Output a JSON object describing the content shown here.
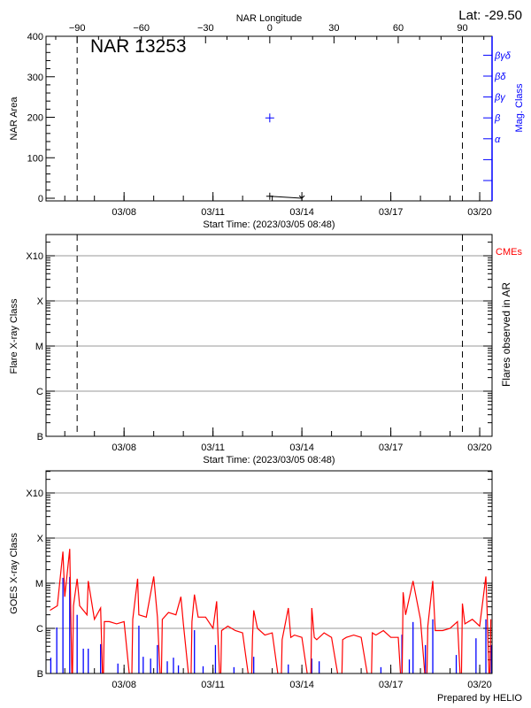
{
  "header": {
    "lat": "Lat: -29.50",
    "credit": "Prepared by HELIO"
  },
  "chart_data": [
    {
      "type": "scatter",
      "title": "NAR 13253",
      "xlabel": "Start Time: (2023/03/05 08:48)",
      "x_range": [
        "2023-03-05T08:48",
        "2023-03-20T10:00"
      ],
      "x_ticks": [
        [
          "2023-03-08T00:00",
          "03/08"
        ],
        [
          "2023-03-11T00:00",
          "03/11"
        ],
        [
          "2023-03-14T00:00",
          "03/14"
        ],
        [
          "2023-03-17T00:00",
          "03/17"
        ],
        [
          "2023-03-20T00:00",
          "03/20"
        ]
      ],
      "ylabel": "NAR Area",
      "ylim": [
        0,
        400
      ],
      "y_ticks": [
        "0",
        "100",
        "200",
        "300",
        "400"
      ],
      "top_axis": {
        "label": "NAR Longitude",
        "ticks": [
          "-90",
          "-60",
          "-30",
          "0",
          "30",
          "60",
          "90"
        ]
      },
      "right_axis": {
        "label": "Mag. Class",
        "color": "#0000ff",
        "classes": [
          "",
          "",
          "α",
          "β",
          "βγ",
          "βδ",
          "βγδ"
        ]
      },
      "limb_markers": [
        "2023-03-06T10:00",
        "2023-03-19T10:00"
      ],
      "area_series": [
        [
          "2023-03-12T22:00",
          5
        ],
        [
          "2023-03-14T00:00",
          0
        ]
      ],
      "mag_class_series": [
        [
          "2023-03-12T22:00",
          "β"
        ]
      ],
      "grid": false
    },
    {
      "type": "scatter",
      "xlabel": "Start Time: (2023/03/05 08:48)",
      "x_range": [
        "2023-03-05T08:48",
        "2023-03-20T10:00"
      ],
      "x_ticks": [
        [
          "2023-03-08T00:00",
          "03/08"
        ],
        [
          "2023-03-11T00:00",
          "03/11"
        ],
        [
          "2023-03-14T00:00",
          "03/14"
        ],
        [
          "2023-03-17T00:00",
          "03/17"
        ],
        [
          "2023-03-20T00:00",
          "03/20"
        ]
      ],
      "ylabel": "Flare X-ray Class",
      "y_ticks": [
        "B",
        "C",
        "M",
        "X",
        "X10"
      ],
      "right_label": "Flares observed in AR",
      "legend": {
        "label": "CMEs",
        "color": "#ff0000"
      },
      "limb_markers": [
        "2023-03-06T10:00",
        "2023-03-19T10:00"
      ],
      "flares": [],
      "grid": true
    },
    {
      "type": "line",
      "x_range": [
        "2023-03-05T08:48",
        "2023-03-20T10:00"
      ],
      "x_ticks": [
        [
          "2023-03-08T00:00",
          "03/08"
        ],
        [
          "2023-03-11T00:00",
          "03/11"
        ],
        [
          "2023-03-14T00:00",
          "03/14"
        ],
        [
          "2023-03-17T00:00",
          "03/17"
        ],
        [
          "2023-03-20T00:00",
          "03/20"
        ]
      ],
      "ylabel": "GOES X-ray Class",
      "y_ticks": [
        "B",
        "C",
        "M",
        "X",
        "X10"
      ],
      "y_unit": "log10 flux (W/m^2)",
      "grid": true,
      "series": [
        {
          "color": "#ff0000",
          "values": [
            [
              "2023-03-05T12:00",
              -5.6
            ],
            [
              "2023-03-05T18:00",
              -5.5
            ],
            [
              "2023-03-05T22:30",
              -4.3
            ],
            [
              "2023-03-06T00:00",
              -5.3
            ],
            [
              "2023-03-06T04:00",
              -4.24
            ],
            [
              "2023-03-06T06:00",
              -7.5
            ],
            [
              "2023-03-06T07:00",
              -5.5
            ],
            [
              "2023-03-06T10:00",
              -4.9
            ],
            [
              "2023-03-06T12:00",
              -5.5
            ],
            [
              "2023-03-06T18:00",
              -5.7
            ],
            [
              "2023-03-06T19:00",
              -4.95
            ],
            [
              "2023-03-07T00:00",
              -5.8
            ],
            [
              "2023-03-07T05:00",
              -5.55
            ],
            [
              "2023-03-07T07:00",
              -7.5
            ],
            [
              "2023-03-07T08:00",
              -5.85
            ],
            [
              "2023-03-07T12:00",
              -5.85
            ],
            [
              "2023-03-07T18:00",
              -5.9
            ],
            [
              "2023-03-08T00:00",
              -5.85
            ],
            [
              "2023-03-08T06:00",
              -7.5
            ],
            [
              "2023-03-08T07:00",
              -5.8
            ],
            [
              "2023-03-08T11:00",
              -4.9
            ],
            [
              "2023-03-08T12:00",
              -5.7
            ],
            [
              "2023-03-08T18:00",
              -5.75
            ],
            [
              "2023-03-09T00:00",
              -4.85
            ],
            [
              "2023-03-09T03:00",
              -5.75
            ],
            [
              "2023-03-09T06:00",
              -7.5
            ],
            [
              "2023-03-09T07:00",
              -5.8
            ],
            [
              "2023-03-09T12:00",
              -5.65
            ],
            [
              "2023-03-09T18:00",
              -5.7
            ],
            [
              "2023-03-09T22:00",
              -5.3
            ],
            [
              "2023-03-10T00:00",
              -5.9
            ],
            [
              "2023-03-10T06:00",
              -7.5
            ],
            [
              "2023-03-10T07:00",
              -5.85
            ],
            [
              "2023-03-10T09:00",
              -5.25
            ],
            [
              "2023-03-10T12:00",
              -5.75
            ],
            [
              "2023-03-10T18:00",
              -5.75
            ],
            [
              "2023-03-11T00:00",
              -6.0
            ],
            [
              "2023-03-11T03:00",
              -5.4
            ],
            [
              "2023-03-11T06:00",
              -7.5
            ],
            [
              "2023-03-11T07:00",
              -6.05
            ],
            [
              "2023-03-11T12:00",
              -5.95
            ],
            [
              "2023-03-11T18:00",
              -6.05
            ],
            [
              "2023-03-12T00:00",
              -6.1
            ],
            [
              "2023-03-12T07:00",
              -7.5
            ],
            [
              "2023-03-12T08:00",
              -6.2
            ],
            [
              "2023-03-12T09:00",
              -5.6
            ],
            [
              "2023-03-12T12:00",
              -6.0
            ],
            [
              "2023-03-12T18:00",
              -6.15
            ],
            [
              "2023-03-13T00:00",
              -6.1
            ],
            [
              "2023-03-13T07:00",
              -7.5
            ],
            [
              "2023-03-13T08:00",
              -6.25
            ],
            [
              "2023-03-13T13:00",
              -5.55
            ],
            [
              "2023-03-13T15:00",
              -6.2
            ],
            [
              "2023-03-13T18:00",
              -6.15
            ],
            [
              "2023-03-14T00:00",
              -6.2
            ],
            [
              "2023-03-14T07:00",
              -7.5
            ],
            [
              "2023-03-14T08:00",
              -5.55
            ],
            [
              "2023-03-14T10:00",
              -6.2
            ],
            [
              "2023-03-14T12:00",
              -6.25
            ],
            [
              "2023-03-14T18:00",
              -6.1
            ],
            [
              "2023-03-15T00:00",
              -6.2
            ],
            [
              "2023-03-15T08:00",
              -7.5
            ],
            [
              "2023-03-15T09:00",
              -6.25
            ],
            [
              "2023-03-15T12:00",
              -6.2
            ],
            [
              "2023-03-15T18:00",
              -6.15
            ],
            [
              "2023-03-16T00:00",
              -6.2
            ],
            [
              "2023-03-16T08:00",
              -7.5
            ],
            [
              "2023-03-16T09:00",
              -6.1
            ],
            [
              "2023-03-16T12:00",
              -6.15
            ],
            [
              "2023-03-16T18:00",
              -6.05
            ],
            [
              "2023-03-17T00:00",
              -6.2
            ],
            [
              "2023-03-17T06:00",
              -6.2
            ],
            [
              "2023-03-17T09:00",
              -7.5
            ],
            [
              "2023-03-17T10:00",
              -5.2
            ],
            [
              "2023-03-17T12:00",
              -5.7
            ],
            [
              "2023-03-17T18:00",
              -4.95
            ],
            [
              "2023-03-18T00:00",
              -5.8
            ],
            [
              "2023-03-18T05:00",
              -7.5
            ],
            [
              "2023-03-18T06:00",
              -5.95
            ],
            [
              "2023-03-18T10:00",
              -4.95
            ],
            [
              "2023-03-18T12:00",
              -6.05
            ],
            [
              "2023-03-18T18:00",
              -6.05
            ],
            [
              "2023-03-19T00:00",
              -6.0
            ],
            [
              "2023-03-19T06:00",
              -5.85
            ],
            [
              "2023-03-19T09:00",
              -7.5
            ],
            [
              "2023-03-19T10:00",
              -5.45
            ],
            [
              "2023-03-19T12:00",
              -5.9
            ],
            [
              "2023-03-19T18:00",
              -5.8
            ],
            [
              "2023-03-20T00:00",
              -5.95
            ],
            [
              "2023-03-20T05:00",
              -4.85
            ],
            [
              "2023-03-20T06:00",
              -5.6
            ],
            [
              "2023-03-20T08:00",
              -7.5
            ],
            [
              "2023-03-20T09:00",
              -5.8
            ]
          ]
        },
        {
          "color": "#0000ff",
          "spikes": [
            [
              "2023-03-05T12:40",
              -6.65
            ],
            [
              "2023-03-05T17:30",
              -5.98
            ],
            [
              "2023-03-05T22:30",
              -4.88
            ],
            [
              "2023-03-06T04:00",
              -4.86
            ],
            [
              "2023-03-06T10:00",
              -5.7
            ],
            [
              "2023-03-06T15:00",
              -6.45
            ],
            [
              "2023-03-06T19:00",
              -6.45
            ],
            [
              "2023-03-07T05:00",
              -6.35
            ],
            [
              "2023-03-07T19:00",
              -6.78
            ],
            [
              "2023-03-08T12:00",
              -5.94
            ],
            [
              "2023-03-08T15:30",
              -6.63
            ],
            [
              "2023-03-08T21:30",
              -6.67
            ],
            [
              "2023-03-09T03:00",
              -6.37
            ],
            [
              "2023-03-09T11:00",
              -6.73
            ],
            [
              "2023-03-09T16:00",
              -6.65
            ],
            [
              "2023-03-09T20:00",
              -6.82
            ],
            [
              "2023-03-10T09:00",
              -6.04
            ],
            [
              "2023-03-10T16:00",
              -6.84
            ],
            [
              "2023-03-11T02:00",
              -6.37
            ],
            [
              "2023-03-11T17:00",
              -6.86
            ],
            [
              "2023-03-12T09:00",
              -6.63
            ],
            [
              "2023-03-13T13:00",
              -6.8
            ],
            [
              "2023-03-14T08:00",
              -6.67
            ],
            [
              "2023-03-14T14:00",
              -6.73
            ],
            [
              "2023-03-16T16:00",
              -6.86
            ],
            [
              "2023-03-17T09:00",
              -6.14
            ],
            [
              "2023-03-17T15:00",
              -6.69
            ],
            [
              "2023-03-17T18:00",
              -5.86
            ],
            [
              "2023-03-18T04:00",
              -6.37
            ],
            [
              "2023-03-18T10:00",
              -5.8
            ],
            [
              "2023-03-19T05:00",
              -6.59
            ],
            [
              "2023-03-19T21:00",
              -6.22
            ],
            [
              "2023-03-20T05:00",
              -5.8
            ],
            [
              "2023-03-20T09:30",
              -6.37
            ]
          ]
        }
      ]
    }
  ]
}
